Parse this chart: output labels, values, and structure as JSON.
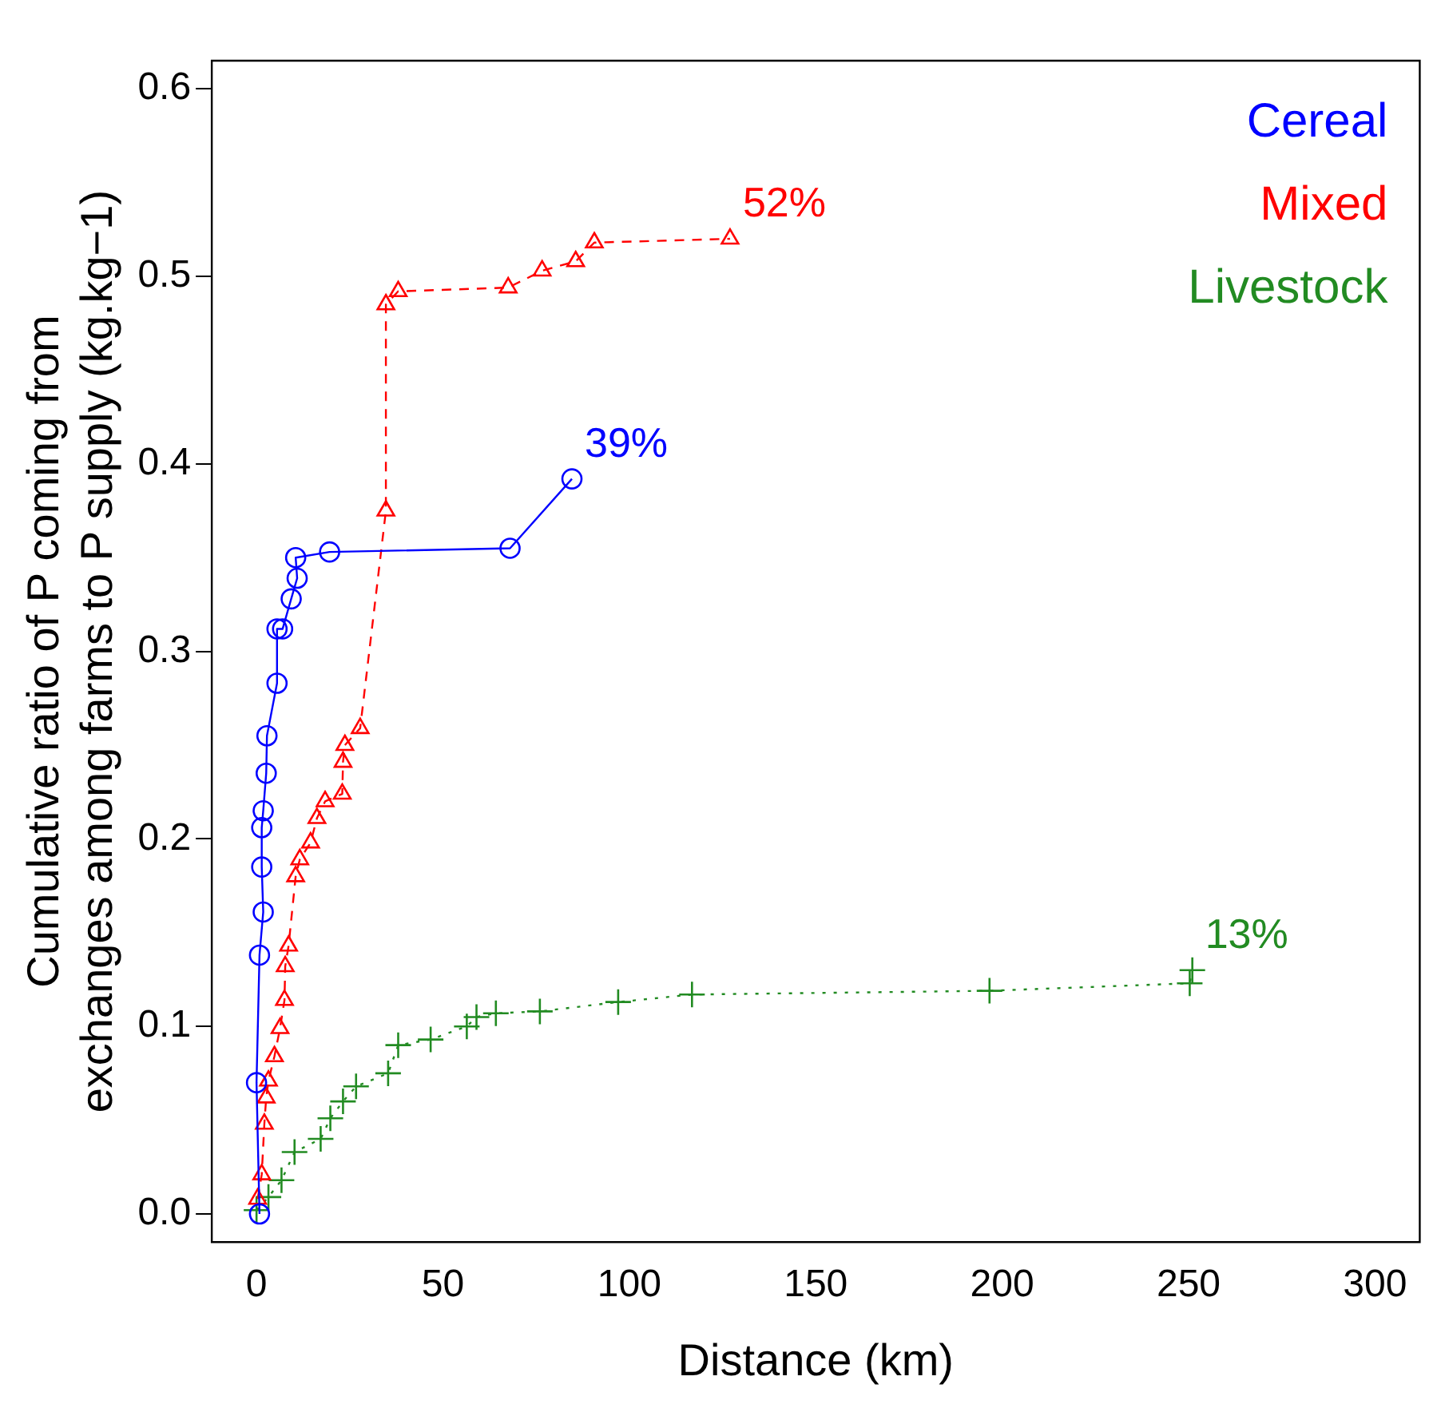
{
  "chart_data": {
    "type": "line",
    "xlabel": "Distance (km)",
    "ylabel": "Cumulative ratio of P coming from exchanges among farms to P supply (kg.kg−1)",
    "xlim": [
      -12,
      312
    ],
    "ylim": [
      -0.015,
      0.615
    ],
    "xticks": [
      0,
      50,
      100,
      150,
      200,
      250,
      300
    ],
    "yticks": [
      {
        "value": 0,
        "label": "0.0"
      },
      0.1,
      0.2,
      0.3,
      0.4,
      0.5,
      0.6
    ],
    "grid": false,
    "legend": "top right",
    "series": [
      {
        "name": "Cereal",
        "color": "#0000ff",
        "marker": "circle",
        "line_style": "solid",
        "x": [
          0.8,
          0,
          0.8,
          1.8,
          1.4,
          1.4,
          1.8,
          2.6,
          2.8,
          5.5,
          5.5,
          7,
          9.3,
          10.9,
          10.5,
          19.6,
          68,
          84.6
        ],
        "values": [
          0,
          0.07,
          0.138,
          0.161,
          0.185,
          0.206,
          0.215,
          0.235,
          0.255,
          0.283,
          0.312,
          0.312,
          0.328,
          0.339,
          0.35,
          0.353,
          0.355,
          0.392
        ]
      },
      {
        "name": "Mixed",
        "color": "#ff0000",
        "marker": "triangle",
        "line_style": "dashed",
        "x": [
          0.3,
          1.4,
          2.1,
          2.6,
          3.2,
          4.8,
          6.3,
          7.5,
          7.7,
          8.6,
          10.5,
          11.6,
          14.5,
          16.2,
          18.4,
          23,
          23.2,
          23.7,
          27.8,
          34.7,
          34.7,
          38,
          67.5,
          76.6,
          85.6,
          90.6,
          127
        ],
        "values": [
          0.008,
          0.021,
          0.048,
          0.062,
          0.071,
          0.084,
          0.099,
          0.114,
          0.132,
          0.143,
          0.18,
          0.189,
          0.198,
          0.211,
          0.22,
          0.224,
          0.241,
          0.25,
          0.259,
          0.375,
          0.485,
          0.492,
          0.494,
          0.503,
          0.508,
          0.518,
          0.52
        ]
      },
      {
        "name": "Livestock",
        "color": "#228b22",
        "marker": "cross",
        "line_style": "dotted",
        "x": [
          0,
          3.2,
          6.7,
          10.2,
          17.2,
          19.8,
          23.2,
          26.7,
          35.3,
          38,
          46.7,
          56.4,
          59,
          64.2,
          76,
          97,
          116.8,
          196.6,
          250.3,
          251
        ],
        "values": [
          0.002,
          0.009,
          0.018,
          0.033,
          0.04,
          0.051,
          0.06,
          0.068,
          0.075,
          0.09,
          0.093,
          0.1,
          0.105,
          0.107,
          0.108,
          0.113,
          0.117,
          0.119,
          0.123,
          0.13
        ]
      }
    ],
    "annotations": [
      {
        "text": "39%",
        "x": 84.6,
        "y": 0.392
      },
      {
        "text": "52%",
        "x": 127,
        "y": 0.52
      },
      {
        "text": "13%",
        "x": 251,
        "y": 0.13
      }
    ]
  }
}
